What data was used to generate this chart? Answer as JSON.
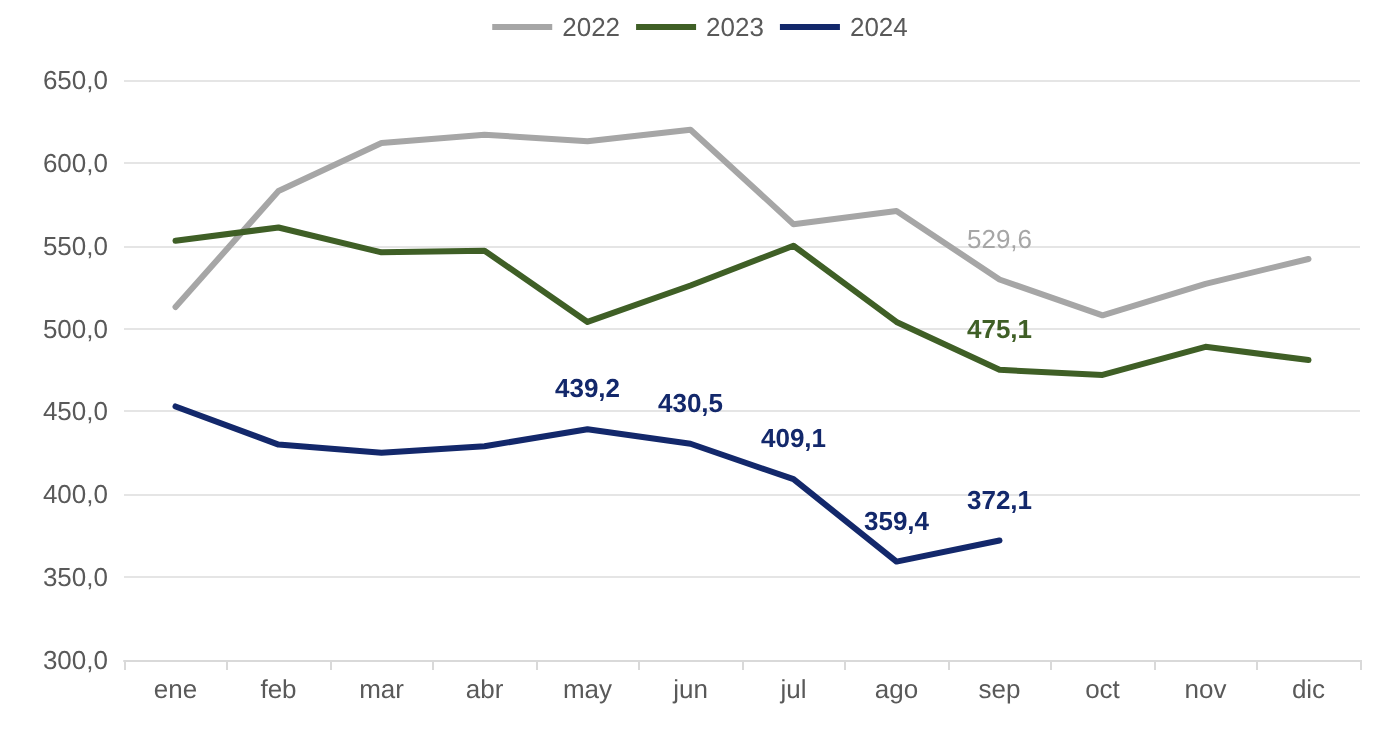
{
  "chart_data": {
    "type": "line",
    "categories": [
      "ene",
      "feb",
      "mar",
      "abr",
      "may",
      "jun",
      "jul",
      "ago",
      "sep",
      "oct",
      "nov",
      "dic"
    ],
    "series": [
      {
        "name": "2022",
        "color": "#a6a6a6",
        "values": [
          513,
          583,
          612,
          617,
          613,
          620,
          563,
          571,
          529.6,
          508,
          527,
          542
        ],
        "value_labels": [
          null,
          null,
          null,
          null,
          null,
          null,
          null,
          null,
          "529,6",
          null,
          null,
          null
        ]
      },
      {
        "name": "2023",
        "color": "#3f5f26",
        "values": [
          553,
          561,
          546,
          547,
          504,
          526,
          550,
          504,
          475.1,
          472,
          489,
          481
        ],
        "value_labels": [
          null,
          null,
          null,
          null,
          null,
          null,
          null,
          null,
          "475,1",
          null,
          null,
          null
        ]
      },
      {
        "name": "2024",
        "color": "#13286b",
        "values": [
          453,
          430,
          425,
          429,
          439.2,
          430.5,
          409.1,
          359.4,
          372.1,
          null,
          null,
          null
        ],
        "value_labels": [
          null,
          null,
          null,
          null,
          "439,2",
          "430,5",
          "409,1",
          "359,4",
          "372,1",
          null,
          null,
          null
        ]
      }
    ],
    "ylim": [
      300,
      650
    ],
    "yticks": [
      {
        "value": 300,
        "label": "300,0"
      },
      {
        "value": 350,
        "label": "350,0"
      },
      {
        "value": 400,
        "label": "400,0"
      },
      {
        "value": 450,
        "label": "450,0"
      },
      {
        "value": 500,
        "label": "500,0"
      },
      {
        "value": 550,
        "label": "550,0"
      },
      {
        "value": 600,
        "label": "600,0"
      },
      {
        "value": 650,
        "label": "650,0"
      }
    ],
    "grid": "y",
    "legend": "top",
    "marker": "none",
    "line_style": "solid"
  }
}
